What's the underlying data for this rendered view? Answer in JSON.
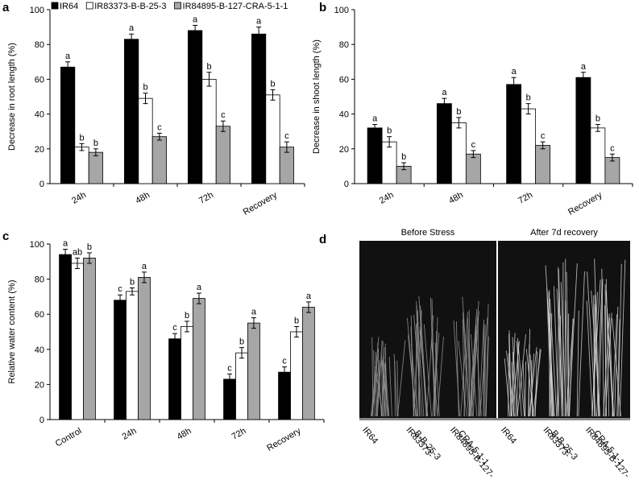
{
  "chart_data": [
    {
      "type": "bar",
      "panel_label": "a",
      "ylabel": "Decrease in root length (%)",
      "categories": [
        "24h",
        "48h",
        "72h",
        "Recovery"
      ],
      "series": [
        {
          "name": "IR64",
          "color": "#000000",
          "values": [
            67,
            83,
            88,
            86
          ],
          "errors": [
            3,
            3,
            3,
            4
          ],
          "letters": [
            "a",
            "a",
            "a",
            "a"
          ]
        },
        {
          "name": "IR83373-B-B-25-3",
          "color": "#ffffff",
          "values": [
            21,
            49,
            60,
            51
          ],
          "errors": [
            2,
            3,
            4,
            3
          ],
          "letters": [
            "b",
            "b",
            "b",
            "b"
          ]
        },
        {
          "name": "IR84895-B-127-CRA-5-1-1",
          "color": "#a6a6a6",
          "values": [
            18,
            27,
            33,
            21
          ],
          "errors": [
            2,
            2,
            3,
            3
          ],
          "letters": [
            "b",
            "c",
            "c",
            "c"
          ]
        }
      ],
      "ylim": [
        0,
        100
      ],
      "yticks": [
        0,
        20,
        40,
        60,
        80,
        100
      ],
      "legend": "top"
    },
    {
      "type": "bar",
      "panel_label": "b",
      "ylabel": "Decrease in shoot length (%)",
      "categories": [
        "24h",
        "48h",
        "72h",
        "Recovery"
      ],
      "series": [
        {
          "color": "#000000",
          "values": [
            32,
            46,
            57,
            61
          ],
          "errors": [
            2,
            3,
            4,
            3
          ],
          "letters": [
            "a",
            "a",
            "a",
            "a"
          ]
        },
        {
          "color": "#ffffff",
          "values": [
            24,
            35,
            43,
            32
          ],
          "errors": [
            3,
            3,
            3,
            2
          ],
          "letters": [
            "b",
            "b",
            "b",
            "b"
          ]
        },
        {
          "color": "#a6a6a6",
          "values": [
            10,
            17,
            22,
            15
          ],
          "errors": [
            2,
            2,
            2,
            2
          ],
          "letters": [
            "b",
            "c",
            "c",
            "c"
          ]
        }
      ],
      "ylim": [
        0,
        100
      ],
      "yticks": [
        0,
        20,
        40,
        60,
        80,
        100
      ]
    },
    {
      "type": "bar",
      "panel_label": "c",
      "ylabel": "Relative water content (%)",
      "categories": [
        "Control",
        "24h",
        "48h",
        "72h",
        "Recovery"
      ],
      "series": [
        {
          "color": "#000000",
          "values": [
            94,
            68,
            46,
            23,
            27
          ],
          "errors": [
            3,
            3,
            3,
            3,
            3
          ],
          "letters": [
            "a",
            "c",
            "c",
            "c",
            "c"
          ]
        },
        {
          "color": "#ffffff",
          "values": [
            89,
            73,
            53,
            38,
            50
          ],
          "errors": [
            3,
            2,
            3,
            3,
            3
          ],
          "letters": [
            "ab",
            "b",
            "b",
            "b",
            "b"
          ]
        },
        {
          "color": "#a6a6a6",
          "values": [
            92,
            81,
            69,
            55,
            64
          ],
          "errors": [
            3,
            3,
            3,
            3,
            3
          ],
          "letters": [
            "b",
            "a",
            "a",
            "a",
            "a"
          ]
        }
      ],
      "ylim": [
        0,
        100
      ],
      "yticks": [
        0,
        20,
        40,
        60,
        80,
        100
      ]
    }
  ],
  "photo": {
    "panel_label": "d",
    "titles": [
      "Before Stress",
      "After 7d recovery"
    ],
    "labels": [
      [
        [
          "IR64"
        ],
        [
          "IR83373-",
          "B-B-25-3"
        ],
        [
          "IR84895-B-127-",
          "CRA-5-1-1"
        ]
      ],
      [
        [
          "IR64"
        ],
        [
          "IR83373-",
          "B-B-25-3"
        ],
        [
          "IR84895-B-127-",
          "CRA-5-1-1"
        ]
      ]
    ]
  }
}
